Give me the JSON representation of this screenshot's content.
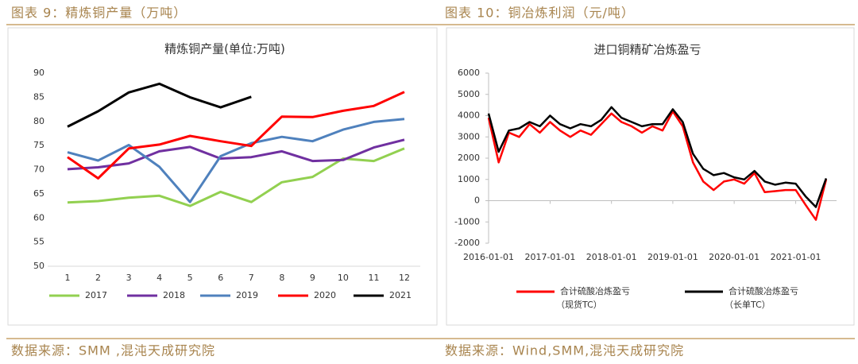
{
  "page": {
    "headings": [
      "图表 9：精炼铜产量（万吨）",
      "图表 10：铜冶炼利润（元/吨）"
    ],
    "sources": [
      "数据来源：SMM ,混沌天成研究院",
      "数据来源：Wind,SMM,混沌天成研究院"
    ]
  },
  "chart_data": [
    {
      "type": "line",
      "title": "精炼铜产量(单位:万吨)",
      "categories": [
        "1",
        "2",
        "3",
        "4",
        "5",
        "6",
        "7",
        "8",
        "9",
        "10",
        "11",
        "12"
      ],
      "ylim": [
        50,
        90
      ],
      "yticks": [
        50,
        55,
        60,
        65,
        70,
        75,
        80,
        85,
        90
      ],
      "grid": false,
      "legend": "bottom",
      "series": [
        {
          "name": "2017",
          "color": "#92d050",
          "values": [
            63.2,
            63.5,
            64.2,
            64.6,
            62.5,
            65.4,
            63.3,
            67.4,
            68.5,
            72.3,
            71.8,
            74.4
          ]
        },
        {
          "name": "2018",
          "color": "#7030a0",
          "values": [
            70.1,
            70.5,
            71.3,
            73.8,
            74.7,
            72.3,
            72.6,
            73.8,
            71.8,
            72.0,
            74.6,
            76.2
          ]
        },
        {
          "name": "2019",
          "color": "#4f81bd",
          "values": [
            73.6,
            71.9,
            75.1,
            70.6,
            63.3,
            72.8,
            75.5,
            76.8,
            75.9,
            78.3,
            79.9,
            80.5
          ]
        },
        {
          "name": "2020",
          "color": "#ff0000",
          "values": [
            72.6,
            68.2,
            74.4,
            75.2,
            77.0,
            75.9,
            74.9,
            81.0,
            80.9,
            82.2,
            83.2,
            86.1
          ]
        },
        {
          "name": "2021",
          "color": "#000000",
          "values": [
            78.9,
            82.1,
            86.0,
            87.8,
            85.0,
            82.9,
            85.1,
            null,
            null,
            null,
            null,
            null
          ]
        }
      ]
    },
    {
      "type": "line",
      "title": "进口铜精矿冶炼盈亏",
      "x": [
        "2016-01-01",
        "2016-03-01",
        "2016-05-01",
        "2016-07-01",
        "2016-09-01",
        "2016-11-01",
        "2017-01-01",
        "2017-03-01",
        "2017-05-01",
        "2017-07-01",
        "2017-09-01",
        "2017-11-01",
        "2018-01-01",
        "2018-03-01",
        "2018-05-01",
        "2018-07-01",
        "2018-09-01",
        "2018-11-01",
        "2019-01-01",
        "2019-03-01",
        "2019-05-01",
        "2019-07-01",
        "2019-09-01",
        "2019-11-01",
        "2020-01-01",
        "2020-03-01",
        "2020-05-01",
        "2020-07-01",
        "2020-09-01",
        "2020-11-01",
        "2021-01-01",
        "2021-03-01",
        "2021-05-01",
        "2021-07-01"
      ],
      "xlim": [
        "2016-01-01",
        "2021-09-01"
      ],
      "xticks": [
        "2016-01-01",
        "2017-01-01",
        "2018-01-01",
        "2019-01-01",
        "2020-01-01",
        "2021-01-01"
      ],
      "ylim": [
        -2000,
        6000
      ],
      "yticks": [
        -2000,
        -1000,
        0,
        1000,
        2000,
        3000,
        4000,
        5000,
        6000
      ],
      "grid": false,
      "legend": "bottom",
      "series": [
        {
          "name": "合计硫酸冶炼盈亏",
          "note": "（现货TC）",
          "color": "#ff0000",
          "values": [
            3900,
            1800,
            3200,
            3000,
            3600,
            3200,
            3700,
            3300,
            3000,
            3300,
            3100,
            3600,
            4100,
            3700,
            3500,
            3200,
            3500,
            3300,
            4200,
            3500,
            1800,
            900,
            500,
            900,
            1000,
            800,
            1300,
            400,
            450,
            500,
            500,
            -200,
            -900,
            1000
          ]
        },
        {
          "name": "合计硫酸冶炼盈亏",
          "note": "（长单TC）",
          "color": "#000000",
          "values": [
            4100,
            2300,
            3300,
            3400,
            3700,
            3500,
            4000,
            3600,
            3400,
            3600,
            3500,
            3800,
            4400,
            3900,
            3700,
            3500,
            3600,
            3600,
            4300,
            3700,
            2200,
            1500,
            1200,
            1300,
            1100,
            1000,
            1400,
            900,
            750,
            850,
            800,
            200,
            -300,
            1050
          ]
        }
      ]
    }
  ]
}
